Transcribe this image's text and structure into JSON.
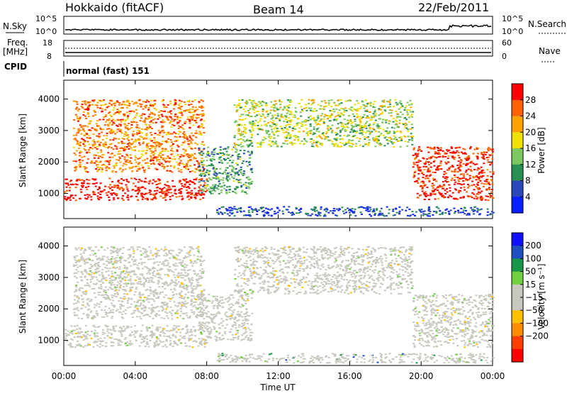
{
  "header": {
    "station": "Hokkaido (fitACF)",
    "beam": "Beam 14",
    "date": "22/Feb/2011"
  },
  "param_panel": {
    "nsky_label": "N.Sky",
    "nsky_ticks": [
      "10^5",
      "10^0"
    ],
    "nsearch_label": "N.Search",
    "nsearch_ticks": [
      "10^5",
      "10^0"
    ],
    "freq_label_1": "Freq.",
    "freq_label_2": "[MHz]",
    "freq_ticks": [
      "18",
      "8"
    ],
    "nave_label": "Nave",
    "nave_ticks": [
      "60",
      "0"
    ],
    "cpid_label": "CPID",
    "cpid_value": "normal (fast) 151"
  },
  "colors": {
    "power_scale": [
      "#0a1fff",
      "#2a48b8",
      "#2a8f55",
      "#7dc860",
      "#f0e000",
      "#ffa200",
      "#ff6000",
      "#ff0000"
    ],
    "velocity_scale": [
      "#1010ff",
      "#2050c0",
      "#18964a",
      "#70d040",
      "#c8c8be",
      "#c8c8be",
      "#ffc000",
      "#ff8c00",
      "#ff4000",
      "#ff0000"
    ]
  },
  "chart_data": [
    {
      "type": "heatmap",
      "name": "power",
      "xlabel": "",
      "ylabel": "Slant Range [km]",
      "xlim": [
        0,
        24
      ],
      "ylim": [
        200,
        4600
      ],
      "yticks": [
        "1000",
        "2000",
        "3000",
        "4000"
      ],
      "colorbar_label": "Power [dB]",
      "colorbar_ticks": [
        "28",
        "24",
        "20",
        "16",
        "12",
        "8",
        "4"
      ],
      "regions": [
        {
          "x": [
            0,
            8
          ],
          "y": [
            800,
            1500
          ],
          "level": 0.95
        },
        {
          "x": [
            0.5,
            7.8
          ],
          "y": [
            1700,
            4000
          ],
          "level": 0.75
        },
        {
          "x": [
            7.5,
            10.5
          ],
          "y": [
            1000,
            2500
          ],
          "level": 0.35
        },
        {
          "x": [
            9.5,
            19.5
          ],
          "y": [
            2500,
            4000
          ],
          "level": 0.5
        },
        {
          "x": [
            19.5,
            24
          ],
          "y": [
            800,
            2500
          ],
          "level": 0.9
        },
        {
          "x": [
            8.5,
            24
          ],
          "y": [
            300,
            600
          ],
          "level": 0.2
        }
      ]
    },
    {
      "type": "heatmap",
      "name": "velocity",
      "xlabel": "Time UT",
      "ylabel": "Slant Range [km]",
      "xlim": [
        0,
        24
      ],
      "ylim": [
        200,
        4600
      ],
      "xticks": [
        "00:00",
        "04:00",
        "08:00",
        "12:00",
        "16:00",
        "20:00",
        "00:00"
      ],
      "yticks": [
        "1000",
        "2000",
        "3000",
        "4000"
      ],
      "colorbar_label": "Velocity [m s⁻¹]",
      "colorbar_ticks": [
        "200",
        "100",
        "50",
        "15",
        "−15",
        "−50",
        "−100",
        "−200"
      ],
      "regions": [
        {
          "x": [
            0,
            8
          ],
          "y": [
            800,
            1500
          ],
          "level": 0.5
        },
        {
          "x": [
            0.5,
            7.8
          ],
          "y": [
            1700,
            4000
          ],
          "level": 0.5
        },
        {
          "x": [
            7.5,
            10.5
          ],
          "y": [
            1000,
            2500
          ],
          "level": 0.5
        },
        {
          "x": [
            9.5,
            19.5
          ],
          "y": [
            2500,
            4000
          ],
          "level": 0.5
        },
        {
          "x": [
            19.5,
            24
          ],
          "y": [
            800,
            2500
          ],
          "level": 0.5
        },
        {
          "x": [
            8.5,
            24
          ],
          "y": [
            300,
            600
          ],
          "level": 0.65
        }
      ]
    }
  ],
  "axis": {
    "time_label": "Time UT"
  }
}
